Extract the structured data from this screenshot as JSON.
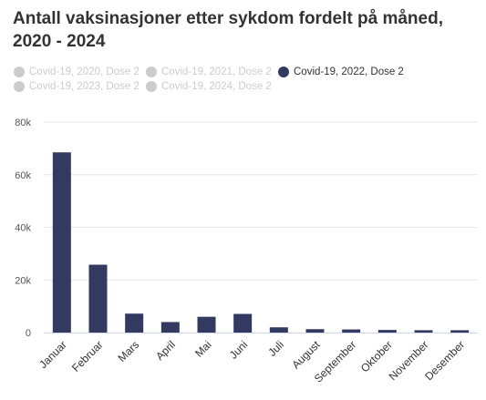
{
  "title": "Antall vaksinasjoner etter sykdom fordelt på måned, 2020 - 2024",
  "legend": [
    {
      "label": "Covid-19, 2020, Dose 2",
      "active": false
    },
    {
      "label": "Covid-19, 2021, Dose 2",
      "active": false
    },
    {
      "label": "Covid-19, 2022, Dose 2",
      "active": true
    },
    {
      "label": "Covid-19, 2023, Dose 2",
      "active": false
    },
    {
      "label": "Covid-19, 2024, Dose 2",
      "active": false
    }
  ],
  "colors": {
    "active_series": "#333a62",
    "inactive": "#cccccc",
    "grid": "#e6e6e6",
    "axis": "#ccd6eb"
  },
  "chart_data": {
    "type": "bar",
    "categories": [
      "Januar",
      "Februar",
      "Mars",
      "April",
      "Mai",
      "Juni",
      "Juli",
      "August",
      "September",
      "Oktober",
      "November",
      "Desember"
    ],
    "series": [
      {
        "name": "Covid-19, 2022, Dose 2",
        "values": [
          68500,
          25800,
          7200,
          4000,
          6000,
          7100,
          2000,
          1300,
          1200,
          1000,
          900,
          900
        ]
      }
    ],
    "ylim": [
      0,
      80000
    ],
    "yticks": [
      0,
      20000,
      40000,
      60000,
      80000
    ],
    "ytick_labels": [
      "0",
      "20k",
      "40k",
      "60k",
      "80k"
    ],
    "grid": true,
    "legend_position": "top-left"
  }
}
